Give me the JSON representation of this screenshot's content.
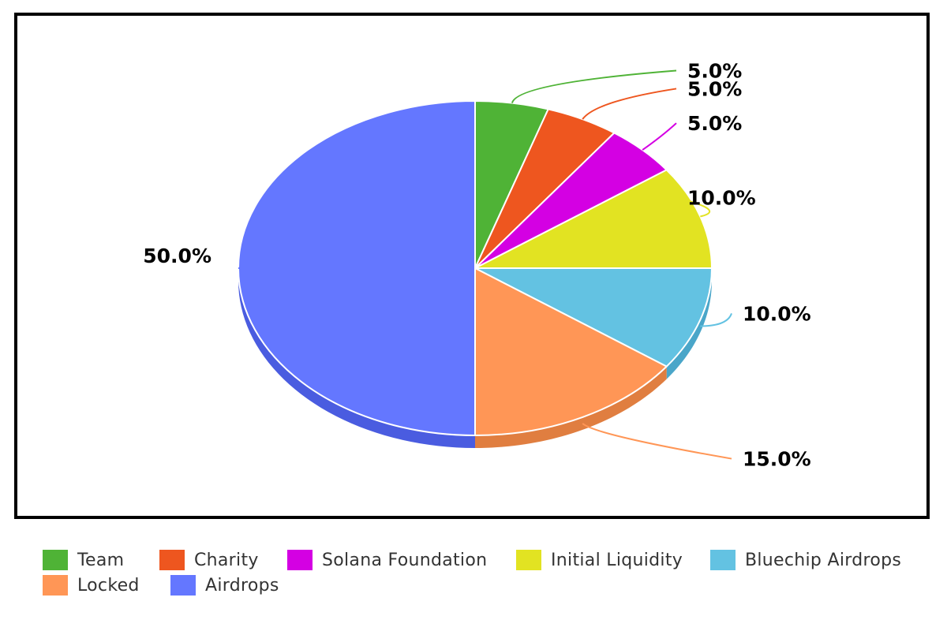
{
  "chart_data": {
    "type": "pie",
    "start_angle_deg": 0,
    "slices": [
      {
        "label": "Team",
        "value": 5.0,
        "display": "5.0%",
        "color": "#4FB336",
        "side_color": "#3E9A2A"
      },
      {
        "label": "Charity",
        "value": 5.0,
        "display": "5.0%",
        "color": "#EE561F",
        "side_color": "#C9461A"
      },
      {
        "label": "Solana Foundation",
        "value": 5.0,
        "display": "5.0%",
        "color": "#D400E3",
        "side_color": "#A800B5"
      },
      {
        "label": "Initial Liquidity",
        "value": 10.0,
        "display": "10.0%",
        "color": "#E2E322",
        "side_color": "#B9BA1A"
      },
      {
        "label": "Bluechip Airdrops",
        "value": 10.0,
        "display": "10.0%",
        "color": "#63C2E2",
        "side_color": "#4AA6C9"
      },
      {
        "label": "Locked",
        "value": 15.0,
        "display": "15.0%",
        "color": "#FF9656",
        "side_color": "#E07E40"
      },
      {
        "label": "Airdrops",
        "value": 50.0,
        "display": "50.0%",
        "color": "#6477FF",
        "side_color": "#4A5CE0"
      }
    ],
    "legend_position": "bottom-left"
  }
}
